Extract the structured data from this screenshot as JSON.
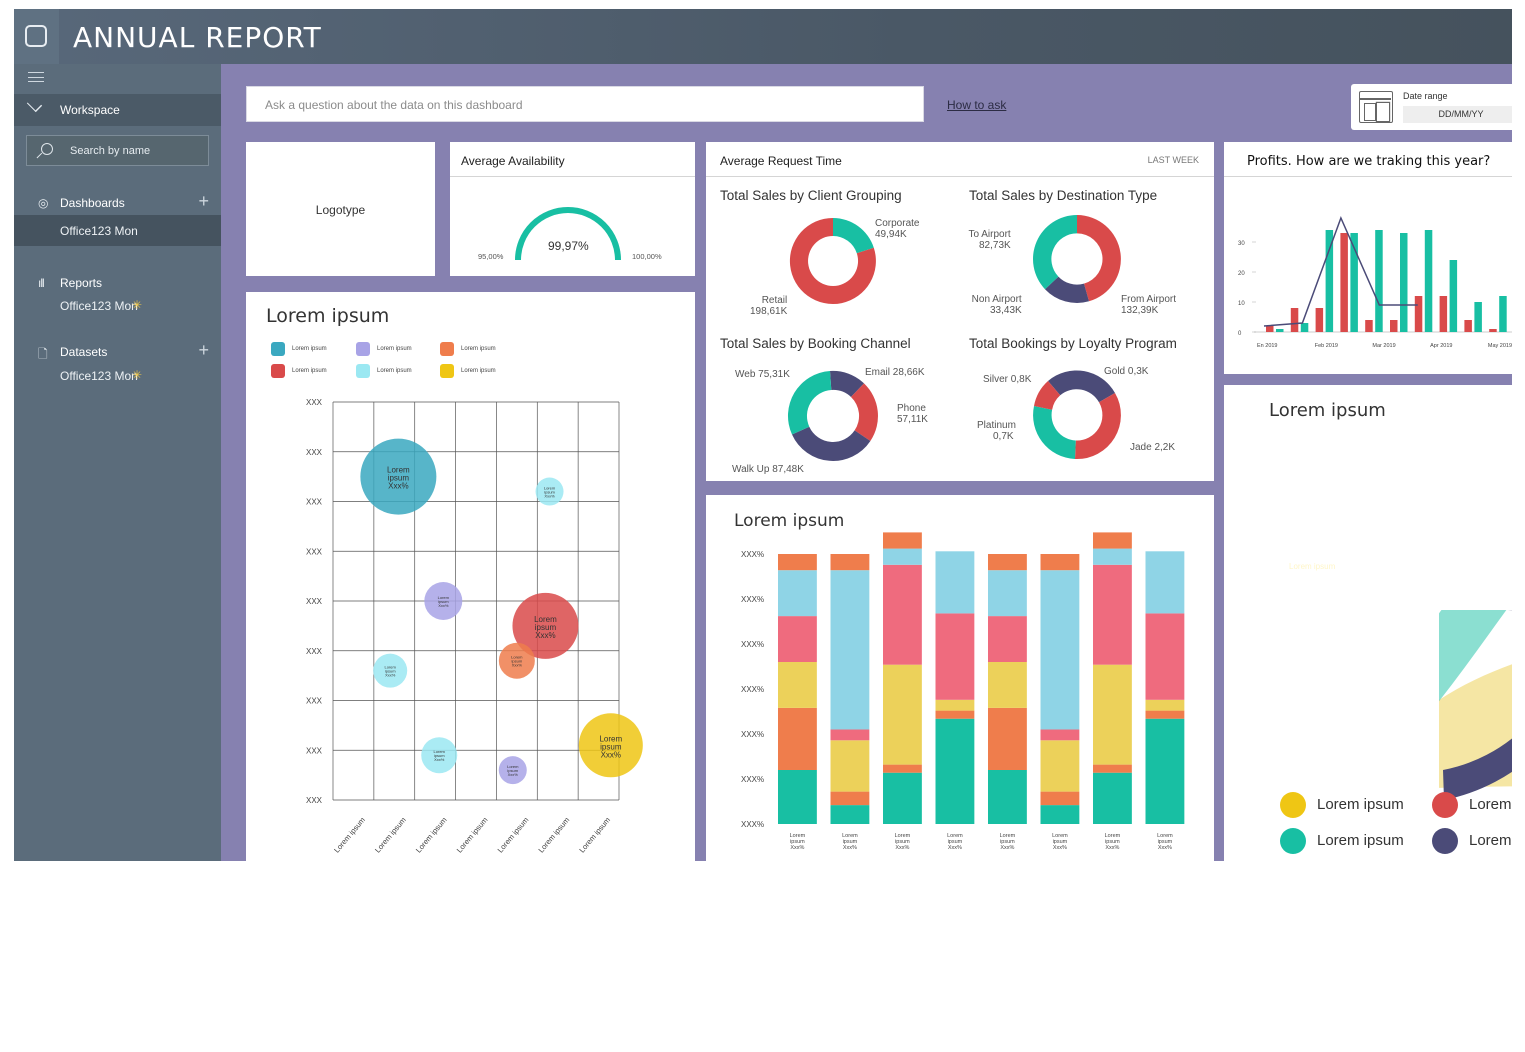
{
  "header": {
    "title": "ANNUAL REPORT"
  },
  "sidebar": {
    "workspace": "Workspace",
    "search_placeholder": "Search by name",
    "dashboards": {
      "label": "Dashboards",
      "item": "Office123 Mon"
    },
    "reports": {
      "label": "Reports",
      "item": "Office123 Mon"
    },
    "datasets": {
      "label": "Datasets",
      "item": "Office123 Mon"
    }
  },
  "toolbar": {
    "ask_placeholder": "Ask a question about the data on this dashboard",
    "how_to_ask": "How to ask",
    "date_range_label": "Date range",
    "date_value": "DD/MM/YY"
  },
  "logo_card": {
    "text": "Logotype"
  },
  "availability": {
    "title": "Average Availability",
    "value": "99,97%",
    "min": "95,00%",
    "max": "100,00%",
    "fraction": 0.9997
  },
  "request_card": {
    "title": "Average Request Time",
    "period": "LAST WEEK",
    "donuts": [
      {
        "title": "Total Sales by Client Grouping",
        "labels": [
          {
            "name": "Corporate",
            "value": "49,94K"
          },
          {
            "name": "Retail",
            "value": "198,61K"
          }
        ]
      },
      {
        "title": "Total Sales by Destination Type",
        "labels": [
          {
            "name": "To Airport",
            "value": "82,73K"
          },
          {
            "name": "Non Airport",
            "value": "33,43K"
          },
          {
            "name": "From Airport",
            "value": "132,39K"
          }
        ]
      },
      {
        "title": "Total Sales by Booking Channel",
        "labels": [
          {
            "name": "Web",
            "value": "75,31K"
          },
          {
            "name": "Email",
            "value": "28,66K"
          },
          {
            "name": "Phone",
            "value": "57,11K"
          },
          {
            "name": "Walk Up",
            "value": "87,48K"
          }
        ]
      },
      {
        "title": "Total Bookings by Loyalty Program",
        "labels": [
          {
            "name": "Silver",
            "value": "0,8K"
          },
          {
            "name": "Gold",
            "value": "0,3K"
          },
          {
            "name": "Platinum",
            "value": "0,7K"
          },
          {
            "name": "Jade",
            "value": "2,2K"
          }
        ]
      }
    ]
  },
  "profits": {
    "title": "Profits. How are we traking this year?"
  },
  "bubble_card": {
    "title": "Lorem ipsum",
    "legend": [
      "Lorem ipsum",
      "Lorem ipsum",
      "Lorem ipsum",
      "Lorem ipsum",
      "Lorem ipsum",
      "Lorem ipsum"
    ]
  },
  "stacked_card": {
    "title": "Lorem ipsum"
  },
  "chord_card": {
    "title": "Lorem ipsum",
    "legend": [
      "Lorem ipsum",
      "Lorem ipsum",
      "Lorem",
      "Lorem"
    ],
    "labels": [
      "Lorem ipsum",
      "Lorem ipsum"
    ]
  },
  "colors": {
    "teal": "#18bfa3",
    "red": "#d94a4a",
    "navy": "#4b4b78",
    "yellow": "#efc614",
    "blue": "#3aa8c0",
    "lavender": "#a8a3e6",
    "orange": "#ef7d4c",
    "aqua": "#9be8f2",
    "pink": "#ef6b7e",
    "sky": "#8fd4e6",
    "gold": "#ecd15a"
  },
  "chart_data": [
    {
      "type": "scatter",
      "title": "Lorem ipsum",
      "y_ticks": [
        "XXX",
        "XXX",
        "XXX",
        "XXX",
        "XXX",
        "XXX",
        "XXX",
        "XXX",
        "XXX"
      ],
      "x_ticks": [
        "Lorem ipsum",
        "Lorem ipsum",
        "Lorem ipsum",
        "Lorem ipsum",
        "Lorem ipsum",
        "Lorem ipsum",
        "Lorem ipsum"
      ],
      "points": [
        {
          "x": 1.6,
          "y": 6.5,
          "r": 38,
          "color": "#3aa8c0",
          "label": [
            "Lorem",
            "ipsum",
            "Xxx%"
          ]
        },
        {
          "x": 5.3,
          "y": 6.2,
          "r": 14,
          "color": "#9be8f2",
          "label": [
            "Lorem",
            "ipsum",
            "Xxx%"
          ]
        },
        {
          "x": 2.7,
          "y": 4.0,
          "r": 19,
          "color": "#a8a3e6",
          "label": [
            "Lorem",
            "ipsum",
            "Xxx%"
          ]
        },
        {
          "x": 5.2,
          "y": 3.5,
          "r": 33,
          "color": "#d94a4a",
          "label": [
            "Lorem",
            "ipsum",
            "Xxx%"
          ]
        },
        {
          "x": 4.5,
          "y": 2.8,
          "r": 18,
          "color": "#ef7d4c",
          "label": [
            "Lorem",
            "ipsum",
            "Xxx%"
          ]
        },
        {
          "x": 1.4,
          "y": 2.6,
          "r": 17,
          "color": "#9be8f2",
          "label": [
            "Lorem",
            "ipsum",
            "Xxx%"
          ]
        },
        {
          "x": 6.8,
          "y": 1.1,
          "r": 32,
          "color": "#efc614",
          "label": [
            "Lorem",
            "ipsum",
            "Xxx%"
          ]
        },
        {
          "x": 2.6,
          "y": 0.9,
          "r": 18,
          "color": "#9be8f2",
          "label": [
            "Lorem",
            "ipsum",
            "Xxx%"
          ]
        },
        {
          "x": 4.4,
          "y": 0.6,
          "r": 14,
          "color": "#a8a3e6",
          "label": [
            "Lorem",
            "ipsum",
            "Xxx%"
          ]
        }
      ]
    },
    {
      "type": "bar",
      "title": "Profits. How are we traking this year?",
      "y_ticks": [
        "0",
        "10",
        "20",
        "30"
      ],
      "x_ticks": [
        "En 2019",
        "Feb 2019",
        "Mar 2019",
        "Apr 2019",
        "May 2019"
      ],
      "ylim": [
        0,
        40
      ],
      "teal": [
        1,
        3,
        34,
        33,
        34,
        33,
        34,
        24,
        10,
        12
      ],
      "red": [
        2,
        8,
        8,
        33,
        4,
        4,
        12,
        12,
        4,
        1
      ],
      "line": [
        2,
        3,
        38,
        9,
        9
      ]
    },
    {
      "type": "bar",
      "stacked": true,
      "title": "Lorem ipsum",
      "y_ticks": [
        "XXX%",
        "XXX%",
        "XXX%",
        "XXX%",
        "XXX%",
        "XXX%",
        "XXX%"
      ],
      "categories": [
        "Lorem ipsum Xxx%",
        "Lorem ipsum Xxx%",
        "Lorem ipsum Xxx%",
        "Lorem ipsum Xxx%",
        "Lorem ipsum Xxx%",
        "Lorem ipsum Xxx%",
        "Lorem ipsum Xxx%",
        "Lorem ipsum Xxx%"
      ],
      "segment_colors": [
        "#18bfa3",
        "#ef7d4c",
        "#ecd15a",
        "#ef6b7e",
        "#8fd4e6",
        "#ef7d4c"
      ],
      "series": [
        {
          "values": [
            20,
            7,
            19,
            39,
            20,
            7,
            19,
            39
          ]
        },
        {
          "values": [
            23,
            5,
            3,
            3,
            23,
            5,
            3,
            3
          ]
        },
        {
          "values": [
            17,
            19,
            37,
            4,
            17,
            19,
            37,
            4
          ]
        },
        {
          "values": [
            17,
            4,
            37,
            32,
            17,
            4,
            37,
            32
          ]
        },
        {
          "values": [
            17,
            59,
            6,
            23,
            17,
            59,
            6,
            23
          ]
        },
        {
          "values": [
            6,
            6,
            6,
            0,
            6,
            6,
            6,
            0
          ]
        }
      ]
    }
  ]
}
